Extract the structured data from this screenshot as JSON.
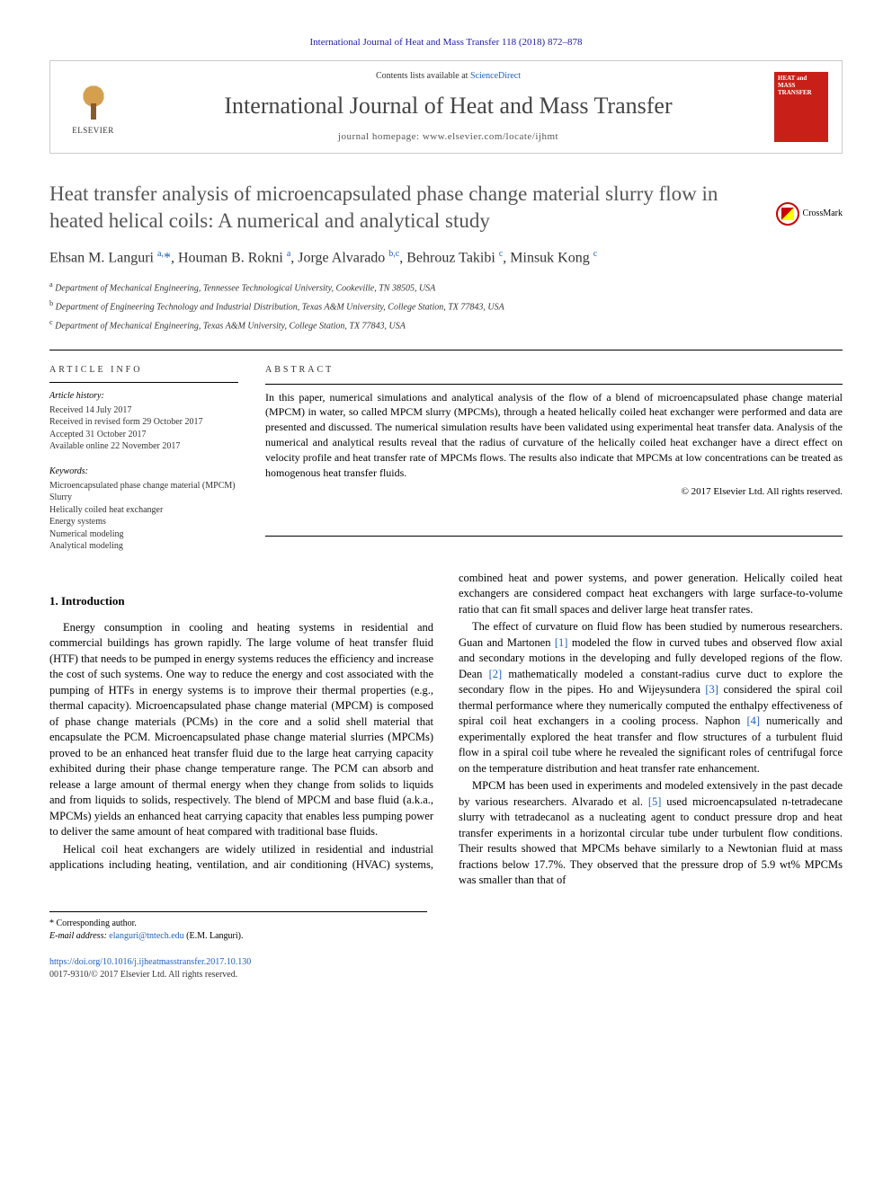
{
  "header": {
    "citation": "International Journal of Heat and Mass Transfer 118 (2018) 872–878",
    "contents_prefix": "Contents lists available at ",
    "contents_link": "ScienceDirect",
    "journal_name": "International Journal of Heat and Mass Transfer",
    "homepage_prefix": "journal homepage: ",
    "homepage_url": "www.elsevier.com/locate/ijhmt",
    "elsevier_label": "ELSEVIER",
    "cover_text": "HEAT and MASS TRANSFER"
  },
  "crossmark_label": "CrossMark",
  "title": "Heat transfer analysis of microencapsulated phase change material slurry flow in heated helical coils: A numerical and analytical study",
  "authors_html": "Ehsan M. Languri <sup>a,</sup><span class=\"star\">*</span>, Houman B. Rokni <sup>a</sup>, Jorge Alvarado <sup>b,c</sup>, Behrouz Takibi <sup>c</sup>, Minsuk Kong <sup>c</sup>",
  "affiliations": [
    {
      "sup": "a",
      "text": "Department of Mechanical Engineering, Tennessee Technological University, Cookeville, TN 38505, USA"
    },
    {
      "sup": "b",
      "text": "Department of Engineering Technology and Industrial Distribution, Texas A&M University, College Station, TX 77843, USA"
    },
    {
      "sup": "c",
      "text": "Department of Mechanical Engineering, Texas A&M University, College Station, TX 77843, USA"
    }
  ],
  "article_info": {
    "heading": "ARTICLE INFO",
    "history_label": "Article history:",
    "history": [
      "Received 14 July 2017",
      "Received in revised form 29 October 2017",
      "Accepted 31 October 2017",
      "Available online 22 November 2017"
    ],
    "keywords_label": "Keywords:",
    "keywords": [
      "Microencapsulated phase change material (MPCM)",
      "Slurry",
      "Helically coiled heat exchanger",
      "Energy systems",
      "Numerical modeling",
      "Analytical modeling"
    ]
  },
  "abstract": {
    "heading": "ABSTRACT",
    "text": "In this paper, numerical simulations and analytical analysis of the flow of a blend of microencapsulated phase change material (MPCM) in water, so called MPCM slurry (MPCMs), through a heated helically coiled heat exchanger were performed and data are presented and discussed. The numerical simulation results have been validated using experimental heat transfer data. Analysis of the numerical and analytical results reveal that the radius of curvature of the helically coiled heat exchanger have a direct effect on velocity profile and heat transfer rate of MPCMs flows. The results also indicate that MPCMs at low concentrations can be treated as homogenous heat transfer fluids.",
    "copyright": "© 2017 Elsevier Ltd. All rights reserved."
  },
  "sections": {
    "intro_heading": "1. Introduction",
    "paragraphs": [
      "Energy consumption in cooling and heating systems in residential and commercial buildings has grown rapidly. The large volume of heat transfer fluid (HTF) that needs to be pumped in energy systems reduces the efficiency and increase the cost of such systems. One way to reduce the energy and cost associated with the pumping of HTFs in energy systems is to improve their thermal properties (e.g., thermal capacity). Microencapsulated phase change material (MPCM) is composed of phase change materials (PCMs) in the core and a solid shell material that encapsulate the PCM. Microencapsulated phase change material slurries (MPCMs) proved to be an enhanced heat transfer fluid due to the large heat carrying capacity exhibited during their phase change temperature range. The PCM can absorb and release a large amount of thermal energy when they change from solids to liquids and from liquids to solids, respectively. The blend of MPCM and base fluid (a.k.a., MPCMs) yields an enhanced heat carrying capacity that enables less pumping power to deliver the same amount of heat compared with traditional base fluids.",
      "Helical coil heat exchangers are widely utilized in residential and industrial applications including heating, ventilation, and air conditioning (HVAC) systems, combined heat and power systems, and power generation. Helically coiled heat exchangers are considered compact heat exchangers with large surface-to-volume ratio that can fit small spaces and deliver large heat transfer rates.",
      "The effect of curvature on fluid flow has been studied by numerous researchers. Guan and Martonen <span class=\"ref\">[1]</span> modeled the flow in curved tubes and observed flow axial and secondary motions in the developing and fully developed regions of the flow. Dean <span class=\"ref\">[2]</span> mathematically modeled a constant-radius curve duct to explore the secondary flow in the pipes. Ho and Wijeysundera <span class=\"ref\">[3]</span> considered the spiral coil thermal performance where they numerically computed the enthalpy effectiveness of spiral coil heat exchangers in a cooling process. Naphon <span class=\"ref\">[4]</span> numerically and experimentally explored the heat transfer and flow structures of a turbulent fluid flow in a spiral coil tube where he revealed the significant roles of centrifugal force on the temperature distribution and heat transfer rate enhancement.",
      "MPCM has been used in experiments and modeled extensively in the past decade by various researchers. Alvarado et al. <span class=\"ref\">[5]</span> used microencapsulated n-tetradecane slurry with tetradecanol as a nucleating agent to conduct pressure drop and heat transfer experiments in a horizontal circular tube under turbulent flow conditions. Their results showed that MPCMs behave similarly to a Newtonian fluid at mass fractions below 17.7%. They observed that the pressure drop of 5.9 wt% MPCMs was smaller than that of"
    ]
  },
  "footer": {
    "corresponding": "* Corresponding author.",
    "email_label": "E-mail address: ",
    "email": "elanguri@tntech.edu",
    "email_suffix": " (E.M. Languri).",
    "doi": "https://doi.org/10.1016/j.ijheatmasstransfer.2017.10.130",
    "issn_copyright": "0017-9310/© 2017 Elsevier Ltd. All rights reserved."
  }
}
